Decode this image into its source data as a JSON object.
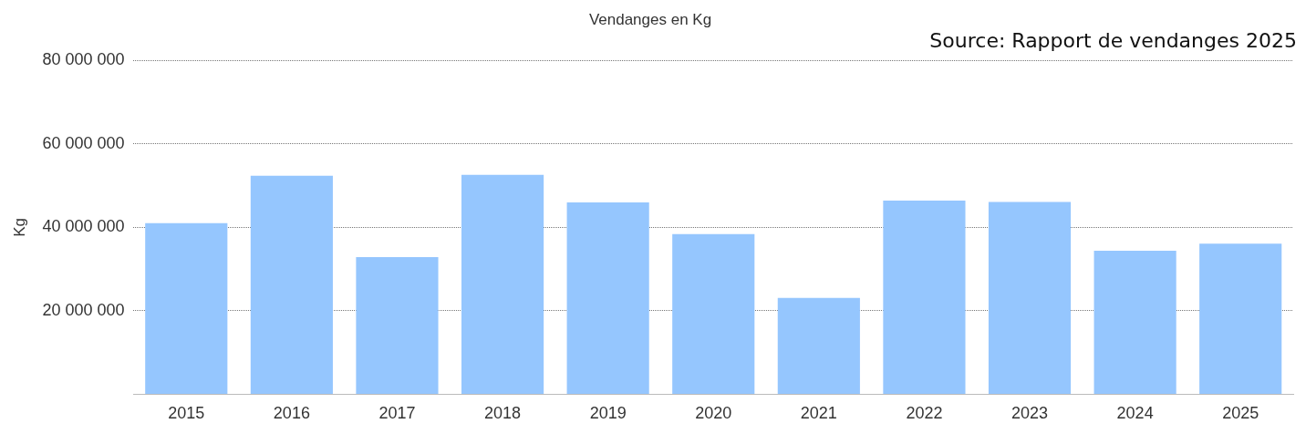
{
  "chart_data": {
    "type": "bar",
    "title": "Vendanges en Kg",
    "ylabel": "Kg",
    "categories": [
      "2015",
      "2016",
      "2017",
      "2018",
      "2019",
      "2020",
      "2021",
      "2022",
      "2023",
      "2024",
      "2025"
    ],
    "series": [
      {
        "color": "#95c6fe",
        "values": [
          41000000,
          52400000,
          32900000,
          52600000,
          46000000,
          38400000,
          23100000,
          46400000,
          46100000,
          34400000,
          36100000
        ]
      }
    ],
    "ylim": [
      0,
      80000000
    ],
    "yticks": [
      {
        "value": 0,
        "label": null
      },
      {
        "value": 20000000,
        "label": "20 000 000"
      },
      {
        "value": 40000000,
        "label": "40 000 000"
      },
      {
        "value": 60000000,
        "label": "60 000 000"
      },
      {
        "value": 80000000,
        "label": "80 000 000"
      }
    ],
    "grid": "y",
    "legend": false,
    "annotations": [
      "Source: Rapport de vendanges 2025"
    ]
  }
}
